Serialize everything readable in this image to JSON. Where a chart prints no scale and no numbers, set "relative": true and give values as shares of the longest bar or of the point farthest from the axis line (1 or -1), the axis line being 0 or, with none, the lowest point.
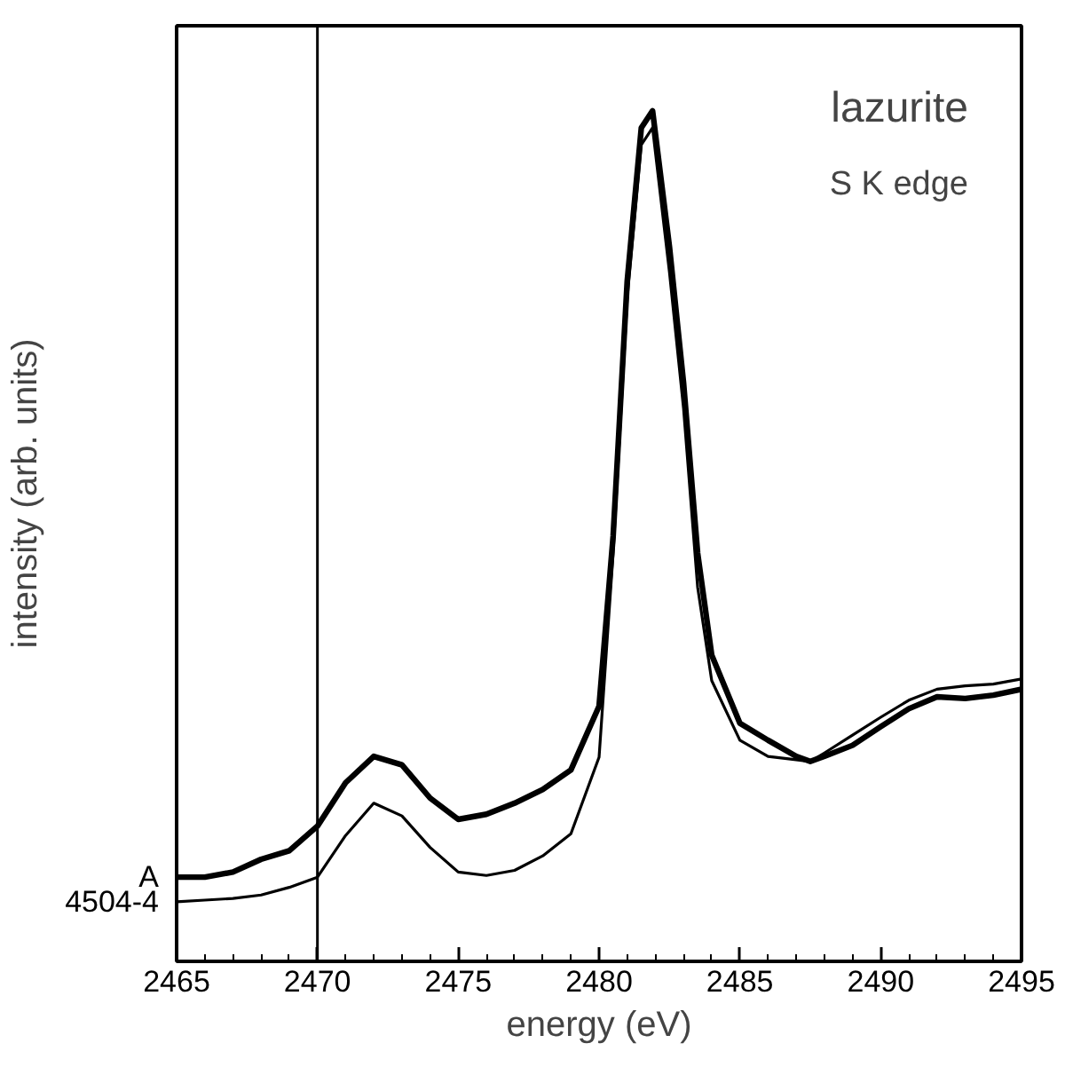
{
  "chart_data": {
    "type": "line",
    "relative": true,
    "xlabel": "energy (eV)",
    "ylabel": "intensity (arb. units)",
    "xlim": [
      2465,
      2495
    ],
    "xticks": [
      2465,
      2470,
      2475,
      2480,
      2485,
      2490,
      2495
    ],
    "x": [
      2465,
      2466,
      2467,
      2468,
      2469,
      2470,
      2471,
      2472,
      2473,
      2474,
      2475,
      2476,
      2477,
      2478,
      2479,
      2480,
      2480.5,
      2481,
      2481.5,
      2481.9,
      2482.5,
      2483,
      2483.5,
      2484,
      2485,
      2486,
      2487,
      2487.5,
      2488,
      2489,
      2490,
      2491,
      2492,
      2493,
      2494,
      2495
    ],
    "series": [
      {
        "name": "A",
        "color": "#000000",
        "values": [
          0.099,
          0.099,
          0.105,
          0.12,
          0.13,
          0.159,
          0.21,
          0.241,
          0.231,
          0.192,
          0.167,
          0.173,
          0.186,
          0.202,
          0.225,
          0.3,
          0.5,
          0.8,
          0.98,
          1.0,
          0.84,
          0.68,
          0.48,
          0.36,
          0.28,
          0.26,
          0.241,
          0.235,
          0.241,
          0.254,
          0.276,
          0.297,
          0.311,
          0.309,
          0.313,
          0.32
        ]
      },
      {
        "name": "4504-4",
        "color": "#000000",
        "values": [
          0.07,
          0.072,
          0.074,
          0.078,
          0.087,
          0.099,
          0.148,
          0.186,
          0.171,
          0.134,
          0.105,
          0.101,
          0.107,
          0.124,
          0.15,
          0.24,
          0.48,
          0.78,
          0.96,
          0.98,
          0.81,
          0.65,
          0.44,
          0.33,
          0.26,
          0.241,
          0.237,
          0.235,
          0.245,
          0.266,
          0.287,
          0.307,
          0.32,
          0.324,
          0.326,
          0.332
        ]
      }
    ],
    "ref_lines": [
      {
        "axis": "x",
        "value": 2470,
        "color": "#000000"
      }
    ],
    "annotations": [
      "lazurite",
      "S K edge"
    ],
    "grid": false,
    "tick_labels": "x"
  }
}
